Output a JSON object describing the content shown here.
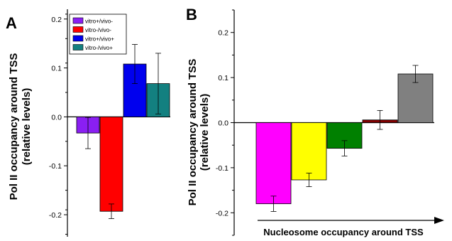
{
  "chart_data": [
    {
      "panel": "A",
      "type": "bar",
      "ylabel": "Pol II occupancy around TSS (relative levels)",
      "ylabel_lines": [
        "Pol II occupancy around TSS",
        "(relative levels)"
      ],
      "ylim": [
        -0.245,
        0.22
      ],
      "yticks": [
        "0.2",
        "0.1",
        "0.0",
        "-0.1",
        "-0.2"
      ],
      "ytick_values": [
        0.2,
        0.1,
        0.0,
        -0.1,
        -0.2
      ],
      "grid": false,
      "legend_position": "top-center",
      "series": [
        {
          "name": "vitro+/vivo-",
          "value": -0.033,
          "error": 0.032,
          "color": "#8a1ff2"
        },
        {
          "name": "vitro-/vivo-",
          "value": -0.193,
          "error": 0.015,
          "color": "#ff0000"
        },
        {
          "name": "vitro+/vivo+",
          "value": 0.108,
          "error": 0.04,
          "color": "#0000ee"
        },
        {
          "name": "vitro-/vivo+",
          "value": 0.068,
          "error": 0.062,
          "color": "#138080"
        }
      ]
    },
    {
      "panel": "B",
      "type": "bar",
      "ylabel": "Pol II occupancy around TSS (relative levels)",
      "ylabel_lines": [
        "Pol II occupancy around TSS",
        "(relative levels)"
      ],
      "xlabel": "Nucleosome occupancy around TSS",
      "ylim": [
        -0.25,
        0.25
      ],
      "yticks": [
        "0.2",
        "0.1",
        "0.0",
        "-0.1",
        "-0.2"
      ],
      "ytick_values": [
        0.2,
        0.1,
        0.0,
        -0.1,
        -0.2
      ],
      "grid": false,
      "values": [
        -0.18,
        -0.127,
        -0.057,
        0.006,
        0.108
      ],
      "errors": [
        0.017,
        0.015,
        0.017,
        0.021,
        0.019
      ],
      "colors": [
        "#ff00ff",
        "#ffff00",
        "#008000",
        "#800000",
        "#808080"
      ]
    }
  ]
}
